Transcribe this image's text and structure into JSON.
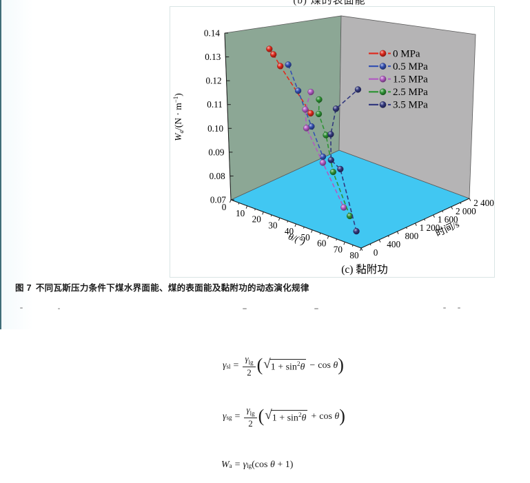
{
  "page": {
    "background": "#ffffff",
    "left_rule_color": "#3f6d78"
  },
  "top_partial_caption": {
    "text": "(b) 煤的表面能"
  },
  "figure_caption": {
    "label": "图 7",
    "text": "不同瓦斯压力条件下煤水界面能、煤的表面能及黏附功的动态演化规律"
  },
  "chart_data": {
    "type": "scatter",
    "projection": "3d",
    "subtitle": "(c) 黏附功",
    "theta_axis": {
      "label": "θ/(°)",
      "min": 0,
      "max": 80,
      "major_ticks": [
        0,
        10,
        20,
        30,
        40,
        50,
        60,
        70,
        80
      ]
    },
    "time_axis": {
      "label": "时间/s",
      "min": 0,
      "max": 2400,
      "tick_labels": [
        "0",
        "400",
        "800",
        "1 200",
        "1 600",
        "2 000",
        "2 400"
      ]
    },
    "w_axis": {
      "label_var": "W",
      "label_sub": "a",
      "label_mid": "/(N · m",
      "label_sup": "−1",
      "label_end": ")",
      "min": 0.07,
      "max": 0.14,
      "tick_labels": [
        "0.07",
        "0.08",
        "0.09",
        "0.10",
        "0.11",
        "0.12",
        "0.13",
        "0.14"
      ]
    },
    "walls": {
      "left_color": "#8ca795",
      "right_color": "#b5b4b5",
      "floor_color": "#41c7f2",
      "panel_border": "#d9e4e4"
    },
    "legend_position": "upper-right",
    "series": [
      {
        "name": "0 MPa",
        "color": "#e02a1d",
        "points": [
          [
            26,
            50,
            0.1395
          ],
          [
            27,
            100,
            0.137
          ],
          [
            29,
            170,
            0.132
          ],
          [
            42,
            340,
            0.114
          ]
        ]
      },
      {
        "name": "0.5 MPa",
        "color": "#3450b2",
        "points": [
          [
            36,
            100,
            0.135
          ],
          [
            39,
            190,
            0.124
          ],
          [
            43,
            310,
            0.109
          ],
          [
            46,
            430,
            0.096
          ]
        ]
      },
      {
        "name": "1.5 MPa",
        "color": "#b15ac2",
        "points": [
          [
            46,
            220,
            0.125
          ],
          [
            41,
            260,
            0.116
          ],
          [
            39,
            340,
            0.107
          ],
          [
            45,
            460,
            0.093
          ],
          [
            53,
            600,
            0.075
          ]
        ]
      },
      {
        "name": "2.5 MPa",
        "color": "#2e9334",
        "points": [
          [
            49,
            290,
            0.122
          ],
          [
            47,
            340,
            0.115
          ],
          [
            49,
            410,
            0.106
          ],
          [
            50,
            500,
            0.09
          ],
          [
            56,
            620,
            0.072
          ]
        ]
      },
      {
        "name": "3.5 MPa",
        "color": "#32387e",
        "points": [
          [
            74,
            120,
            0.0745
          ],
          [
            62,
            240,
            0.0965
          ],
          [
            53,
            360,
            0.097
          ],
          [
            50,
            480,
            0.106
          ],
          [
            49,
            650,
            0.115
          ],
          [
            44,
            1320,
            0.116
          ]
        ]
      }
    ]
  },
  "equations": {
    "eq1": {
      "lhs": "γ",
      "lhs_sub": "sl",
      "equals": "=",
      "num": "γ",
      "num_sub": "lg",
      "den": "2",
      "open": "(",
      "radical": "√",
      "rad_pre": "1 + sin",
      "rad_sup": "2",
      "rad_var": "θ",
      "op": "−",
      "fun": "cos",
      "fun_var": "θ",
      "close": ")"
    },
    "eq2": {
      "lhs": "γ",
      "lhs_sub": "sg",
      "equals": "=",
      "num": "γ",
      "num_sub": "lg",
      "den": "2",
      "open": "(",
      "radical": "√",
      "rad_pre": "1 + sin",
      "rad_sup": "2",
      "rad_var": "θ",
      "op": "+",
      "fun": "cos",
      "fun_var": "θ",
      "close": ")"
    },
    "eq3": {
      "lhs": "W",
      "lhs_sub": "a",
      "equals": "=",
      "rhs": "γ",
      "rhs_sub": "lg",
      "open": "(",
      "fun": "cos",
      "fun_var": "θ",
      "tail": "+ 1",
      "close": ")"
    }
  }
}
